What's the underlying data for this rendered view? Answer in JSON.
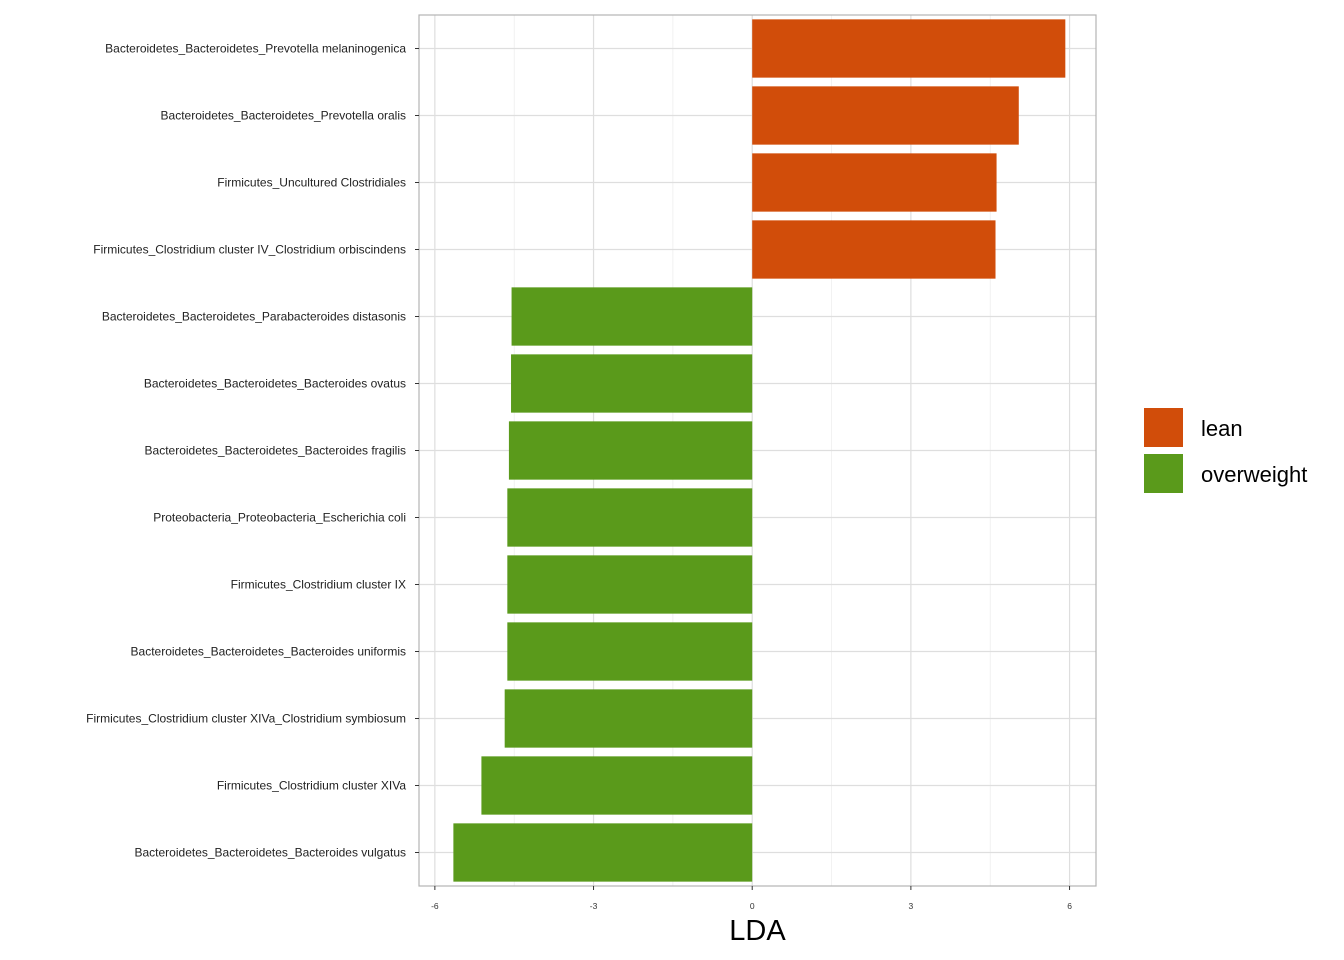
{
  "chart_data": {
    "type": "bar",
    "orientation": "horizontal",
    "title": "",
    "xlabel": "LDA",
    "ylabel": "",
    "xlim": [
      -6.3,
      6.5
    ],
    "xticks": [
      -6,
      -3,
      0,
      3,
      6
    ],
    "grid": true,
    "legend_position": "right",
    "groups": [
      {
        "name": "lean",
        "color": "#D14D0A"
      },
      {
        "name": "overweight",
        "color": "#5A9A1B"
      }
    ],
    "categories": [
      "Bacteroidetes_Bacteroidetes_Prevotella melaninogenica",
      "Bacteroidetes_Bacteroidetes_Prevotella oralis",
      "Firmicutes_Uncultured Clostridiales",
      "Firmicutes_Clostridium cluster IV_Clostridium orbiscindens",
      "Bacteroidetes_Bacteroidetes_Parabacteroides distasonis",
      "Bacteroidetes_Bacteroidetes_Bacteroides ovatus",
      "Bacteroidetes_Bacteroidetes_Bacteroides fragilis",
      "Proteobacteria_Proteobacteria_Escherichia coli",
      "Firmicutes_Clostridium cluster IX",
      "Bacteroidetes_Bacteroidetes_Bacteroides uniformis",
      "Firmicutes_Clostridium cluster XIVa_Clostridium symbiosum",
      "Firmicutes_Clostridium cluster XIVa",
      "Bacteroidetes_Bacteroidetes_Bacteroides vulgatus"
    ],
    "values": [
      5.92,
      5.04,
      4.62,
      4.6,
      -4.55,
      -4.56,
      -4.6,
      -4.63,
      -4.63,
      -4.63,
      -4.68,
      -5.12,
      -5.65
    ],
    "group_of": [
      "lean",
      "lean",
      "lean",
      "lean",
      "overweight",
      "overweight",
      "overweight",
      "overweight",
      "overweight",
      "overweight",
      "overweight",
      "overweight",
      "overweight"
    ]
  }
}
